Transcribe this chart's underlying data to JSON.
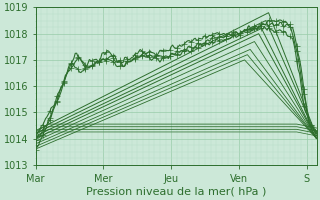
{
  "xlabel": "Pression niveau de la mer( hPa )",
  "bg_color": "#cce8d8",
  "plot_bg_color": "#cce8d8",
  "grid_major_color": "#99ccaa",
  "grid_minor_color": "#b8ddc8",
  "line_color": "#2d6e2d",
  "ylim": [
    1013,
    1019
  ],
  "yticks": [
    1013,
    1014,
    1015,
    1016,
    1017,
    1018,
    1019
  ],
  "day_labels": [
    "Mar",
    "Mer",
    "Jeu",
    "Ven",
    "S"
  ],
  "day_positions": [
    0,
    48,
    96,
    144,
    192
  ],
  "n_pts": 200,
  "xlabel_fontsize": 8,
  "tick_fontsize": 7
}
